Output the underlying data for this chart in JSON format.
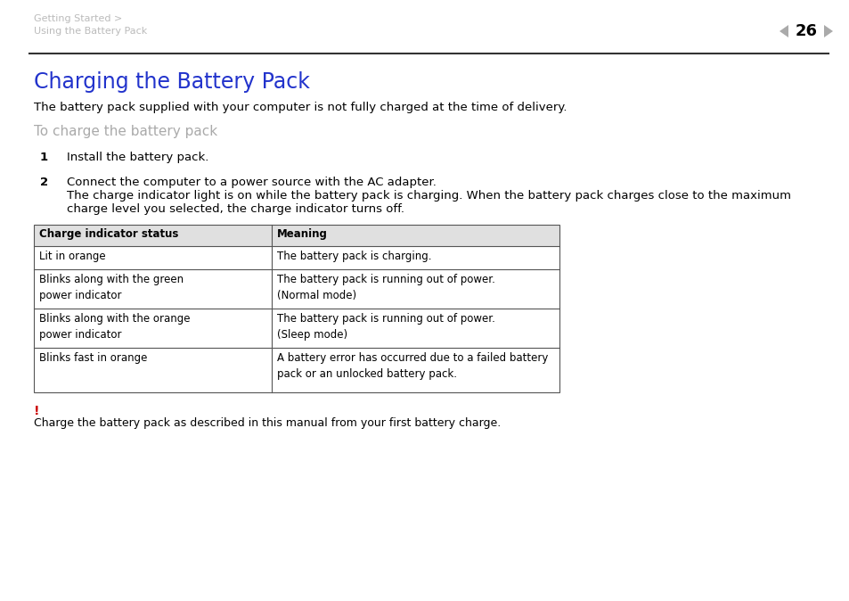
{
  "bg_color": "#ffffff",
  "header_text_line1": "Getting Started >",
  "header_text_line2": "Using the Battery Pack",
  "page_number": "26",
  "title": "Charging the Battery Pack",
  "title_color": "#2233cc",
  "subtitle_intro": "The battery pack supplied with your computer is not fully charged at the time of delivery.",
  "section_heading": "To charge the battery pack",
  "section_heading_color": "#aaaaaa",
  "step1_num": "1",
  "step1_text": "Install the battery pack.",
  "step2_num": "2",
  "step2_line1": "Connect the computer to a power source with the AC adapter.",
  "step2_line2": "The charge indicator light is on while the battery pack is charging. When the battery pack charges close to the maximum",
  "step2_line3": "charge level you selected, the charge indicator turns off.",
  "table_col1_header": "Charge indicator status",
  "table_col2_header": "Meaning",
  "table_rows": [
    [
      "Lit in orange",
      "The battery pack is charging."
    ],
    [
      "Blinks along with the green\npower indicator",
      "The battery pack is running out of power.\n(Normal mode)"
    ],
    [
      "Blinks along with the orange\npower indicator",
      "The battery pack is running out of power.\n(Sleep mode)"
    ],
    [
      "Blinks fast in orange",
      "A battery error has occurred due to a failed battery\npack or an unlocked battery pack."
    ]
  ],
  "warning_symbol": "!",
  "warning_symbol_color": "#cc0000",
  "warning_text": "Charge the battery pack as described in this manual from your first battery charge.",
  "header_color": "#bbbbbb",
  "table_header_bg": "#e0e0e0",
  "table_border_color": "#555555"
}
